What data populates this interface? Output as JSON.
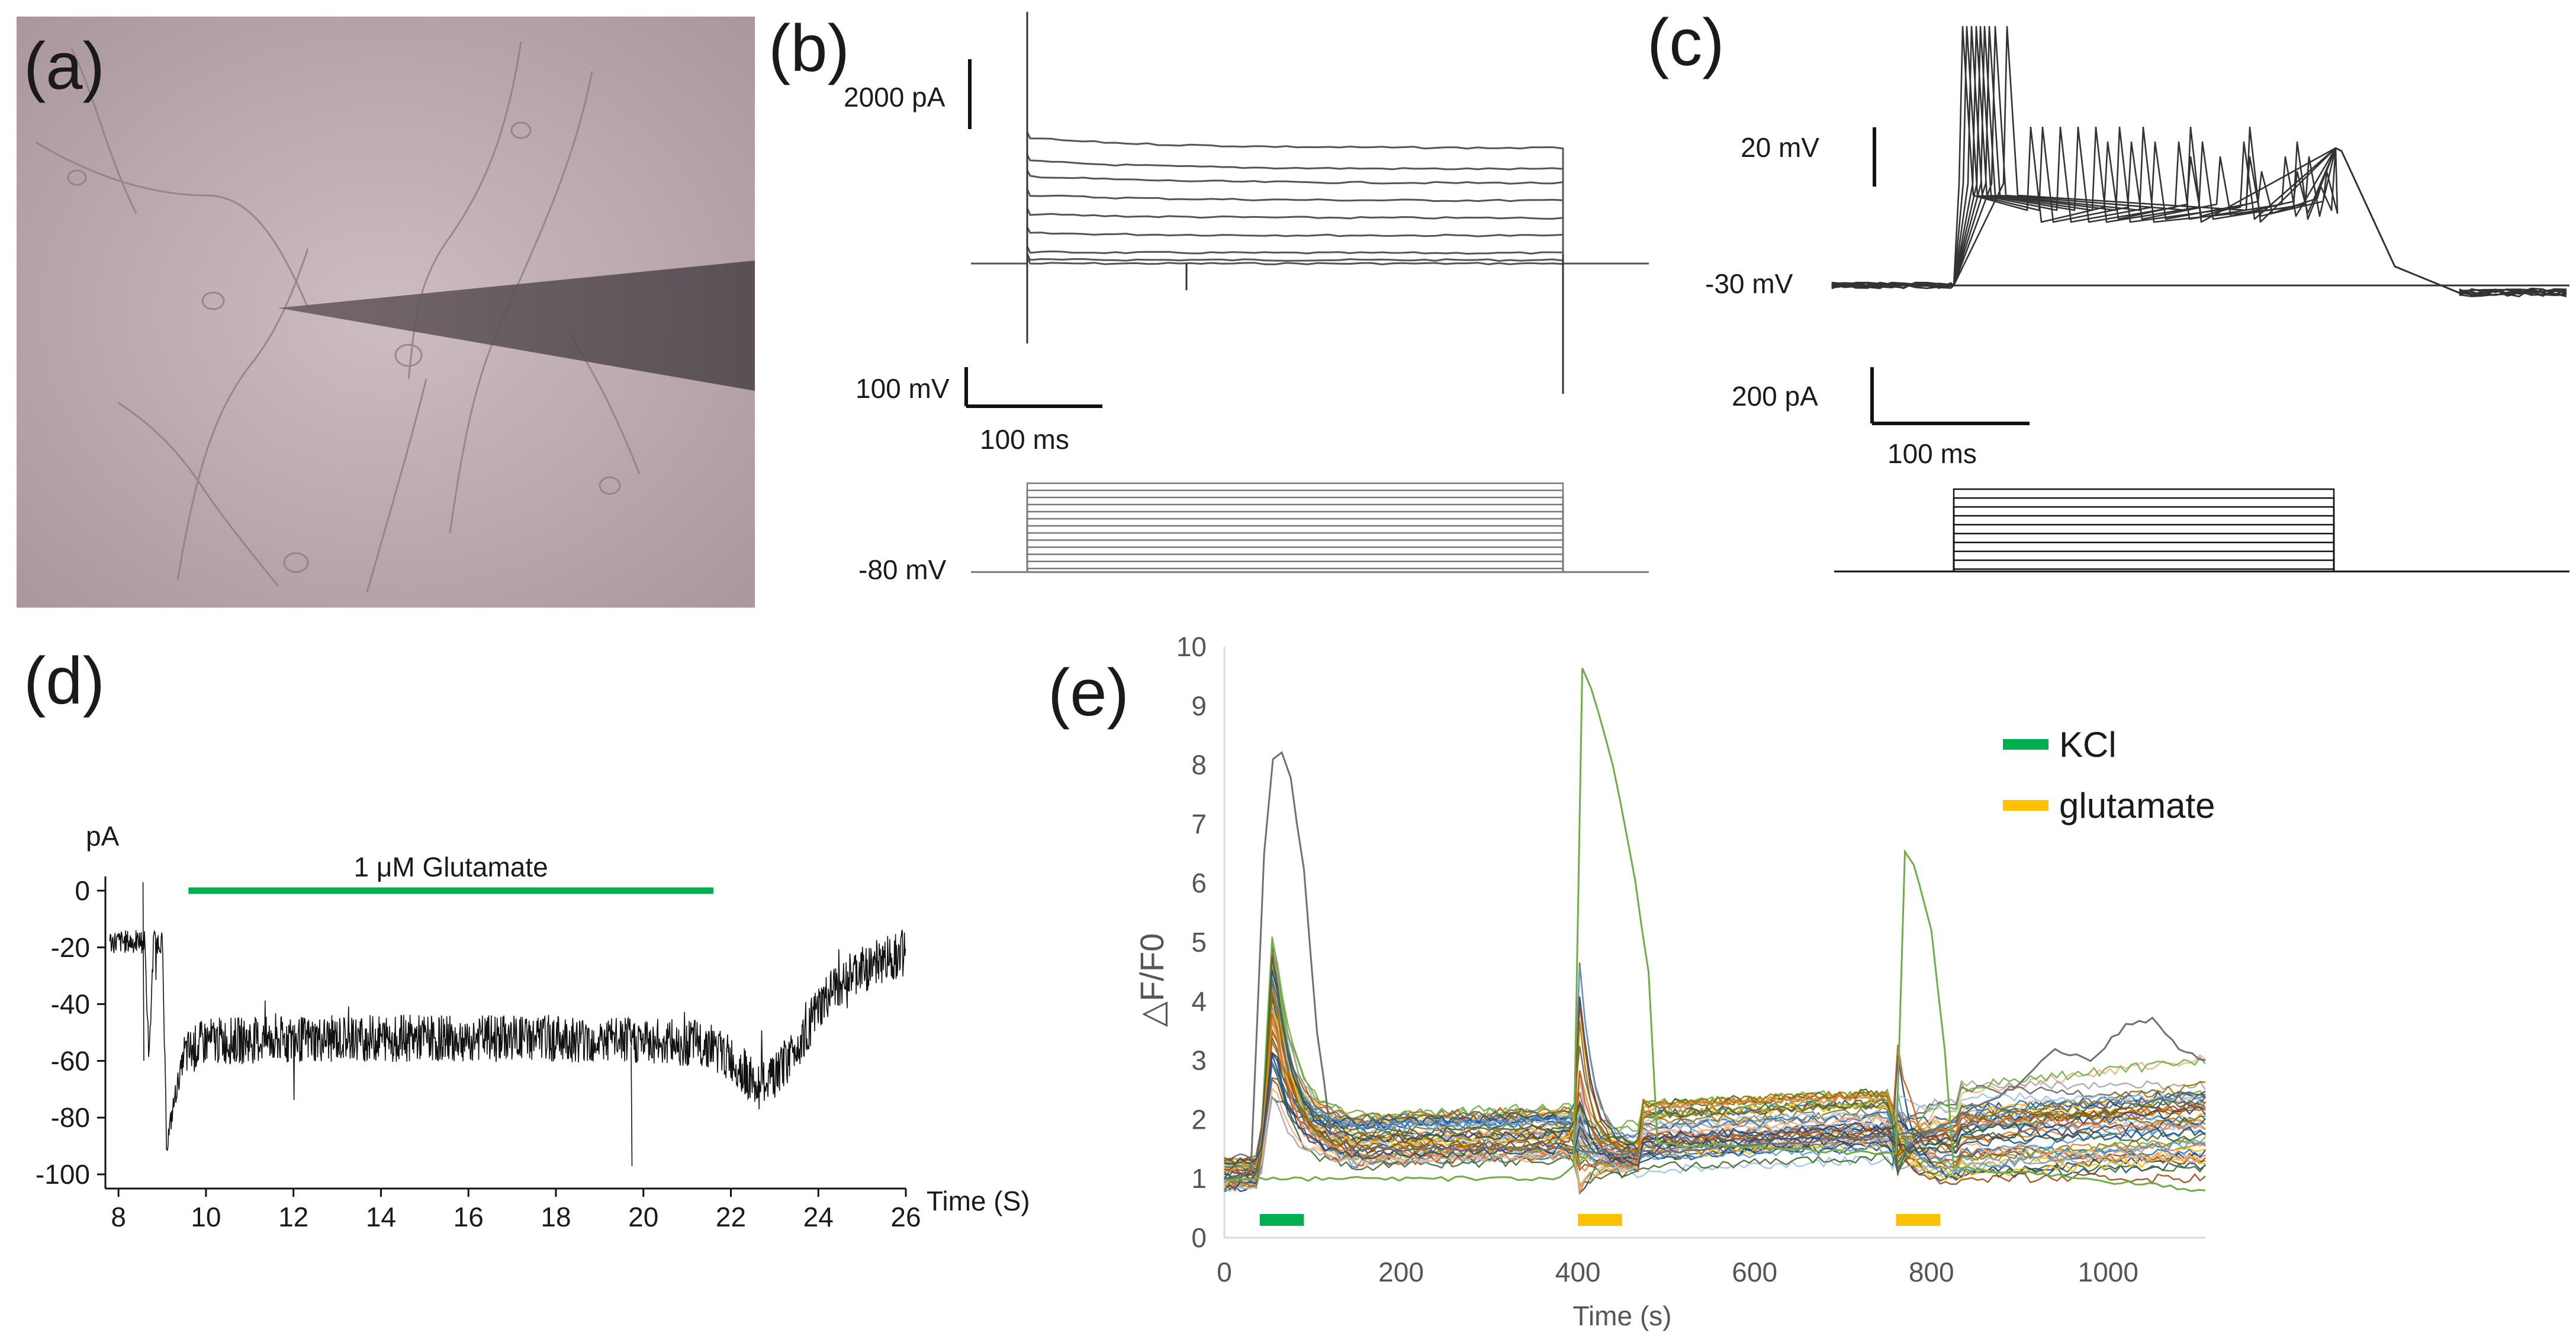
{
  "chart_data": [
    {
      "panel": "a",
      "type": "image",
      "label": "(a)"
    },
    {
      "panel": "b",
      "type": "line",
      "label": "(b)",
      "current_scale_label": "2000 pA",
      "voltage_scale_label": "100 mV",
      "time_scale_label": "100 ms",
      "holding_label": "-80 mV",
      "trace_levels_pA": [
        0,
        100,
        300,
        800,
        1300,
        1800,
        2300,
        2700,
        3300
      ],
      "step_count": 13
    },
    {
      "panel": "c",
      "type": "line",
      "label": "(c)",
      "voltage_scale_label": "20 mV",
      "baseline_label": "-30 mV",
      "current_scale_label": "200 pA",
      "time_scale_label": "100 ms",
      "step_count": 10
    },
    {
      "panel": "d",
      "type": "line",
      "label": "(d)",
      "ylabel": "pA",
      "xlabel": "Time (S)",
      "x_ticks": [
        "8",
        "10",
        "12",
        "14",
        "16",
        "18",
        "20",
        "22",
        "24",
        "26"
      ],
      "y_ticks": [
        "0",
        "-20",
        "-40",
        "-60",
        "-80",
        "-100"
      ],
      "xlim": [
        7.7,
        26
      ],
      "ylim": [
        -105,
        5
      ],
      "annotation": "1 μM Glutamate",
      "glutamate_bar": [
        9.6,
        21.6
      ],
      "trace_points": [
        [
          7.8,
          -18
        ],
        [
          8.6,
          -18
        ],
        [
          8.7,
          -60
        ],
        [
          8.8,
          -18
        ],
        [
          9.0,
          -18
        ],
        [
          9.1,
          -90
        ],
        [
          9.3,
          -72
        ],
        [
          9.5,
          -58
        ],
        [
          10,
          -53
        ],
        [
          14,
          -52
        ],
        [
          18,
          -52
        ],
        [
          21.5,
          -54
        ],
        [
          22.2,
          -62
        ],
        [
          22.6,
          -69
        ],
        [
          23.0,
          -66
        ],
        [
          23.5,
          -55
        ],
        [
          24.0,
          -42
        ],
        [
          24.5,
          -32
        ],
        [
          25.0,
          -28
        ],
        [
          25.5,
          -24
        ],
        [
          26,
          -22
        ]
      ],
      "noise_amplitude": 6
    },
    {
      "panel": "e",
      "type": "line",
      "label": "(e)",
      "ylabel": "△F/F0",
      "xlabel": "Time (s)",
      "x_ticks": [
        "0",
        "200",
        "400",
        "600",
        "800",
        "1000"
      ],
      "y_ticks": [
        "0",
        "1",
        "2",
        "3",
        "4",
        "5",
        "6",
        "7",
        "8",
        "9",
        "10"
      ],
      "xlim": [
        0,
        1110
      ],
      "ylim": [
        0,
        10
      ],
      "legend": [
        {
          "label": "KCl",
          "color": "#00b050"
        },
        {
          "label": "glutamate",
          "color": "#ffc000"
        }
      ],
      "application_bars": [
        {
          "name": "KCl",
          "start": 40,
          "end": 90,
          "color": "#00b050"
        },
        {
          "name": "glutamate",
          "start": 400,
          "end": 450,
          "color": "#ffc000"
        },
        {
          "name": "glutamate",
          "start": 760,
          "end": 810,
          "color": "#ffc000"
        }
      ],
      "highlight_series": [
        {
          "name": "gray-cell",
          "color": "#707070",
          "points": [
            [
              0,
              1.0
            ],
            [
              30,
              1.1
            ],
            [
              45,
              6.5
            ],
            [
              55,
              8.1
            ],
            [
              65,
              8.2
            ],
            [
              75,
              7.8
            ],
            [
              90,
              6.2
            ],
            [
              105,
              3.5
            ],
            [
              120,
              1.8
            ],
            [
              140,
              1.5
            ],
            [
              390,
              1.5
            ],
            [
              450,
              1.4
            ],
            [
              800,
              1.8
            ],
            [
              900,
              2.6
            ],
            [
              940,
              3.2
            ],
            [
              980,
              3.0
            ],
            [
              1020,
              3.6
            ],
            [
              1050,
              3.7
            ],
            [
              1080,
              3.2
            ],
            [
              1110,
              3.0
            ]
          ]
        },
        {
          "name": "green-cell",
          "color": "#70ad47",
          "points": [
            [
              0,
              1.0
            ],
            [
              380,
              1.0
            ],
            [
              395,
              1.2
            ],
            [
              405,
              9.6
            ],
            [
              415,
              9.3
            ],
            [
              440,
              8.0
            ],
            [
              465,
              6.0
            ],
            [
              480,
              4.5
            ],
            [
              490,
              1.6
            ],
            [
              760,
              1.4
            ],
            [
              770,
              6.5
            ],
            [
              780,
              6.3
            ],
            [
              800,
              5.2
            ],
            [
              815,
              3.2
            ],
            [
              825,
              1.2
            ],
            [
              1110,
              0.8
            ]
          ]
        }
      ],
      "population_colors": [
        "#1f4e79",
        "#2e75b6",
        "#9dc3e6",
        "#ffc000",
        "#c55a11",
        "#70ad47",
        "#a5a5a5",
        "#5b9bd5",
        "#f4b183",
        "#264478",
        "#9e480e",
        "#636363",
        "#997300",
        "#43682b",
        "#ed7d31"
      ]
    }
  ]
}
